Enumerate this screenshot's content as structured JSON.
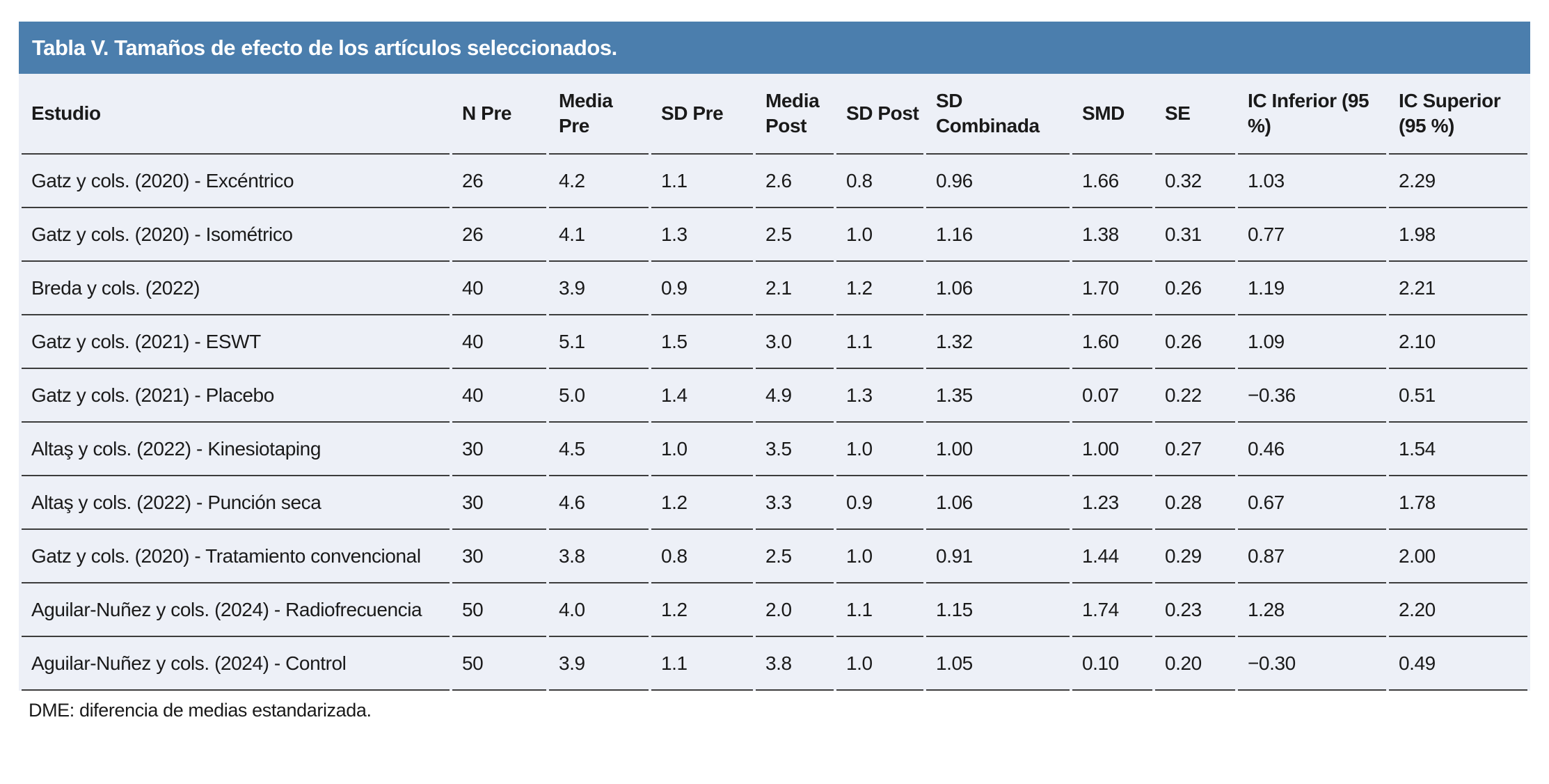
{
  "title": "Tabla V. Tamaños de efecto de los artículos seleccionados.",
  "footnote": "DME: diferencia de medias estandarizada.",
  "colors": {
    "title_bar_background": "#4B7EAD",
    "title_text": "#FFFFFF",
    "row_background": "#EDF0F7",
    "divider_line": "#3C3C3C",
    "body_text": "#1A1A1A"
  },
  "table": {
    "columns": [
      "Estudio",
      "N Pre",
      "Media Pre",
      "SD Pre",
      "Media Post",
      "SD Post",
      "SD Combinada",
      "SMD",
      "SE",
      "IC Inferior (95 %)",
      "IC Superior (95 %)"
    ],
    "rows": [
      [
        "Gatz y cols. (2020) - Excéntrico",
        "26",
        "4.2",
        "1.1",
        "2.6",
        "0.8",
        "0.96",
        "1.66",
        "0.32",
        "1.03",
        "2.29"
      ],
      [
        "Gatz y cols. (2020) - Isométrico",
        "26",
        "4.1",
        "1.3",
        "2.5",
        "1.0",
        "1.16",
        "1.38",
        "0.31",
        "0.77",
        "1.98"
      ],
      [
        "Breda y cols. (2022)",
        "40",
        "3.9",
        "0.9",
        "2.1",
        "1.2",
        "1.06",
        "1.70",
        "0.26",
        "1.19",
        "2.21"
      ],
      [
        "Gatz y cols. (2021) - ESWT",
        "40",
        "5.1",
        "1.5",
        "3.0",
        "1.1",
        "1.32",
        "1.60",
        "0.26",
        "1.09",
        "2.10"
      ],
      [
        "Gatz y cols. (2021) - Placebo",
        "40",
        "5.0",
        "1.4",
        "4.9",
        "1.3",
        "1.35",
        "0.07",
        "0.22",
        "−0.36",
        "0.51"
      ],
      [
        "Altaş y cols. (2022) - Kinesiotaping",
        "30",
        "4.5",
        "1.0",
        "3.5",
        "1.0",
        "1.00",
        "1.00",
        "0.27",
        "0.46",
        "1.54"
      ],
      [
        "Altaş y cols. (2022) - Punción seca",
        "30",
        "4.6",
        "1.2",
        "3.3",
        "0.9",
        "1.06",
        "1.23",
        "0.28",
        "0.67",
        "1.78"
      ],
      [
        "Gatz y cols. (2020) - Tratamiento convencional",
        "30",
        "3.8",
        "0.8",
        "2.5",
        "1.0",
        "0.91",
        "1.44",
        "0.29",
        "0.87",
        "2.00"
      ],
      [
        "Aguilar-Nuñez y cols. (2024) - Radiofrecuencia",
        "50",
        "4.0",
        "1.2",
        "2.0",
        "1.1",
        "1.15",
        "1.74",
        "0.23",
        "1.28",
        "2.20"
      ],
      [
        "Aguilar-Nuñez y cols. (2024) - Control",
        "50",
        "3.9",
        "1.1",
        "3.8",
        "1.0",
        "1.05",
        "0.10",
        "0.20",
        "−0.30",
        "0.49"
      ]
    ]
  }
}
